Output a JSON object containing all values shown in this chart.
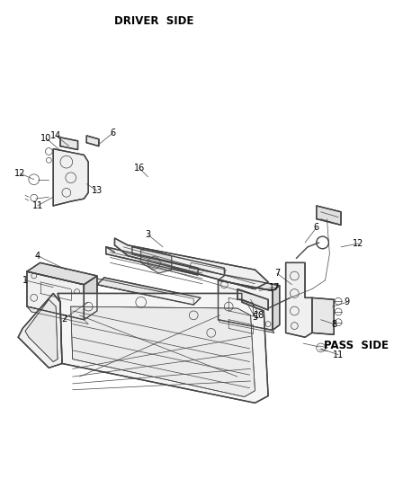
{
  "background_color": "#ffffff",
  "line_color": "#444444",
  "text_color": "#000000",
  "driver_side_label": "DRIVER  SIDE",
  "pass_side_label": "PASS  SIDE",
  "figsize": [
    4.38,
    5.33
  ],
  "dpi": 100,
  "label_fontsize": 7.0,
  "title_fontsize": 8.5,
  "lw_main": 1.0,
  "lw_thin": 0.5,
  "lw_thick": 1.5
}
